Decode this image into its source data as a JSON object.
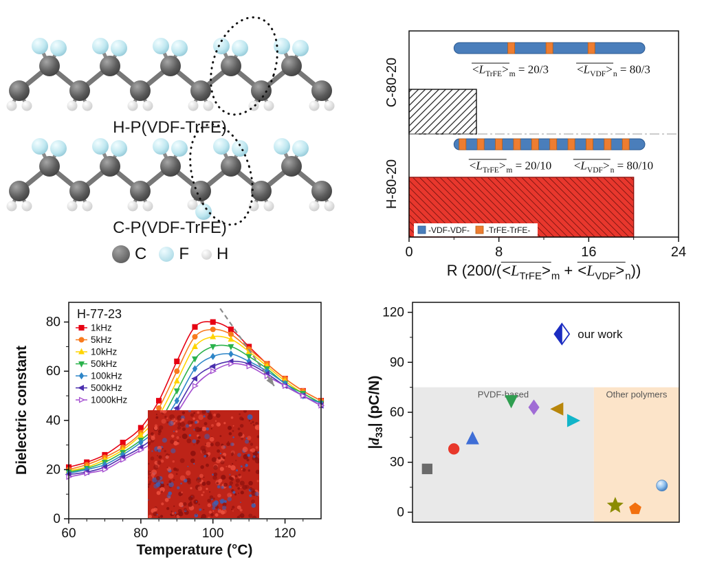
{
  "panel_molecules": {
    "label_top": "H-P(VDF-TrFE)",
    "label_bottom": "C-P(VDF-TrFE)",
    "atom_legend": [
      {
        "symbol": "C",
        "color": "#5a5a5a"
      },
      {
        "symbol": "F",
        "color": "#b8e6ee"
      },
      {
        "symbol": "H",
        "color": "#d8d8d8"
      }
    ]
  },
  "chart_data": [
    {
      "id": "chain-length-ratio",
      "type": "bar",
      "orientation": "horizontal",
      "xlim": [
        0,
        24
      ],
      "x_ticks": [
        0,
        8,
        16,
        24
      ],
      "x_minor_ticks": [
        4,
        12,
        20
      ],
      "xlabel": {
        "prefix": "R (200/(",
        "term1": {
          "open": "<",
          "sym": "L",
          "sub": "TrFE",
          "close": ">",
          "idx": "m"
        },
        "mid": " + ",
        "term2": {
          "open": "<",
          "sym": "L",
          "sub": "VDF",
          "close": ">",
          "idx": "n"
        },
        "suffix": "))"
      },
      "rows": [
        {
          "category": "C-80-20",
          "value": 6,
          "bar_style": "black-hatched",
          "chain": {
            "start": 4.0,
            "end": 21.0,
            "trfe_positions": [
              0.3,
              0.5,
              0.72
            ]
          },
          "label_trfe": {
            "open": "<",
            "sym": "L",
            "sub": "TrFE",
            "close": ">",
            "idx": "m",
            "value": " = 20/3"
          },
          "label_vdf": {
            "open": "<",
            "sym": "L",
            "sub": "VDF",
            "close": ">",
            "idx": "n",
            "value": " = 80/3"
          }
        },
        {
          "category": "H-80-20",
          "value": 20,
          "bar_style": "red-hatched",
          "chain": {
            "start": 4.0,
            "end": 21.0,
            "trfe_positions": [
              0.045,
              0.14,
              0.235,
              0.33,
              0.425,
              0.52,
              0.615,
              0.71,
              0.805,
              0.9
            ]
          },
          "label_trfe": {
            "open": "<",
            "sym": "L",
            "sub": "TrFE",
            "close": ">",
            "idx": "m",
            "value": " = 20/10"
          },
          "label_vdf": {
            "open": "<",
            "sym": "L",
            "sub": "VDF",
            "close": ">",
            "idx": "n",
            "value": " = 80/10"
          }
        }
      ],
      "legend": [
        {
          "label": "-VDF-VDF-",
          "color": "#4a7ebb"
        },
        {
          "label": "-TrFE-TrFE-",
          "color": "#ed7d31"
        }
      ],
      "colors": {
        "black_bar": "#2b2b2b",
        "red_bar": "#e8372d",
        "chain_blue": "#4a7ebb",
        "chain_orange": "#ed7d31"
      }
    },
    {
      "id": "dielectric-vs-temperature",
      "type": "line",
      "annotation": "H-77-23",
      "xlabel": "Temperature (°C)",
      "ylabel": "Dielectric constant",
      "xlim": [
        60,
        130
      ],
      "ylim": [
        0,
        88
      ],
      "x_ticks": [
        60,
        80,
        100,
        120
      ],
      "y_ticks": [
        0,
        20,
        40,
        60,
        80
      ],
      "x": [
        60,
        65,
        70,
        75,
        80,
        85,
        90,
        95,
        100,
        105,
        110,
        115,
        120,
        125,
        130
      ],
      "series": [
        {
          "name": "1kHz",
          "color": "#e60012",
          "marker": "square",
          "open": false,
          "values": [
            21,
            23,
            26,
            31,
            37,
            48,
            64,
            78,
            80,
            77,
            70,
            63,
            57,
            52,
            48
          ]
        },
        {
          "name": "5kHz",
          "color": "#f87a1d",
          "marker": "circle",
          "open": false,
          "values": [
            20,
            22,
            25,
            29,
            35,
            45,
            60,
            74,
            77,
            75,
            69,
            63,
            57,
            52,
            48
          ]
        },
        {
          "name": "10kHz",
          "color": "#ffd400",
          "marker": "triangle-up",
          "open": false,
          "values": [
            19.5,
            21,
            24,
            28,
            34,
            42,
            56,
            70,
            74,
            73,
            68,
            62,
            56,
            51,
            47
          ]
        },
        {
          "name": "50kHz",
          "color": "#2bb24c",
          "marker": "triangle-down",
          "open": false,
          "values": [
            19,
            20.5,
            23,
            27,
            32,
            39,
            52,
            65,
            70,
            70,
            66,
            61,
            55,
            51,
            47
          ]
        },
        {
          "name": "100kHz",
          "color": "#2e86c8",
          "marker": "diamond",
          "open": false,
          "values": [
            18.5,
            20,
            22,
            26,
            31,
            37,
            48,
            61,
            66,
            67,
            64,
            60,
            55,
            50,
            47
          ]
        },
        {
          "name": "500kHz",
          "color": "#4b2fae",
          "marker": "triangle-left",
          "open": false,
          "values": [
            18,
            19,
            21,
            25,
            29,
            35,
            45,
            57,
            62,
            64,
            63,
            59,
            54,
            50,
            46
          ]
        },
        {
          "name": "1000kHz",
          "color": "#a44fd0",
          "marker": "triangle-right",
          "open": true,
          "values": [
            17,
            18.5,
            20,
            24,
            28,
            33,
            43,
            54,
            60,
            63,
            62,
            58,
            54,
            50,
            46
          ]
        }
      ],
      "arrow": {
        "from_x": 102,
        "from_y": 85.5,
        "to_x": 117,
        "to_y": 54,
        "color": "#8a8a8a"
      }
    },
    {
      "id": "d33-comparison",
      "type": "scatter",
      "ylabel_parts": {
        "pre": "|",
        "sym": "d",
        "sub": "33",
        "post": "| (pC/N)"
      },
      "ylim": [
        -6,
        126
      ],
      "y_ticks": [
        0,
        30,
        60,
        90,
        120
      ],
      "y_minor_ticks": [
        15,
        45,
        75,
        105
      ],
      "regions": [
        {
          "label": "PVDF-based",
          "color": "#e9e9e9",
          "x_start": 0,
          "x_end": 0.68,
          "y_top": 75
        },
        {
          "label": "Other polymers",
          "color": "#fce4c9",
          "x_start": 0.68,
          "x_end": 1.0,
          "y_top": 75
        }
      ],
      "points": [
        {
          "x": 0.055,
          "y": 26,
          "marker": "square",
          "color": "#6b6b6b"
        },
        {
          "x": 0.155,
          "y": 38,
          "marker": "circle",
          "color": "#e8382b"
        },
        {
          "x": 0.225,
          "y": 44,
          "marker": "triangle-up",
          "color": "#3f6ed6"
        },
        {
          "x": 0.37,
          "y": 67,
          "marker": "triangle-down",
          "color": "#2f9e50"
        },
        {
          "x": 0.455,
          "y": 63,
          "marker": "diamond",
          "color": "#a06cd5"
        },
        {
          "x": 0.545,
          "y": 62,
          "marker": "triangle-left",
          "color": "#b8860b"
        },
        {
          "x": 0.6,
          "y": 55,
          "marker": "triangle-right",
          "color": "#12b5c9"
        },
        {
          "x": 0.76,
          "y": 4,
          "marker": "star",
          "color": "#8b8b00"
        },
        {
          "x": 0.835,
          "y": 2,
          "marker": "pentagon",
          "color": "#f2700f"
        },
        {
          "x": 0.935,
          "y": 16,
          "marker": "sphere",
          "color": "#74aee8"
        }
      ],
      "highlight": {
        "x": 0.56,
        "y": 107,
        "marker": "half-diamond",
        "color": "#1b2cc1",
        "label": "our work"
      }
    }
  ]
}
